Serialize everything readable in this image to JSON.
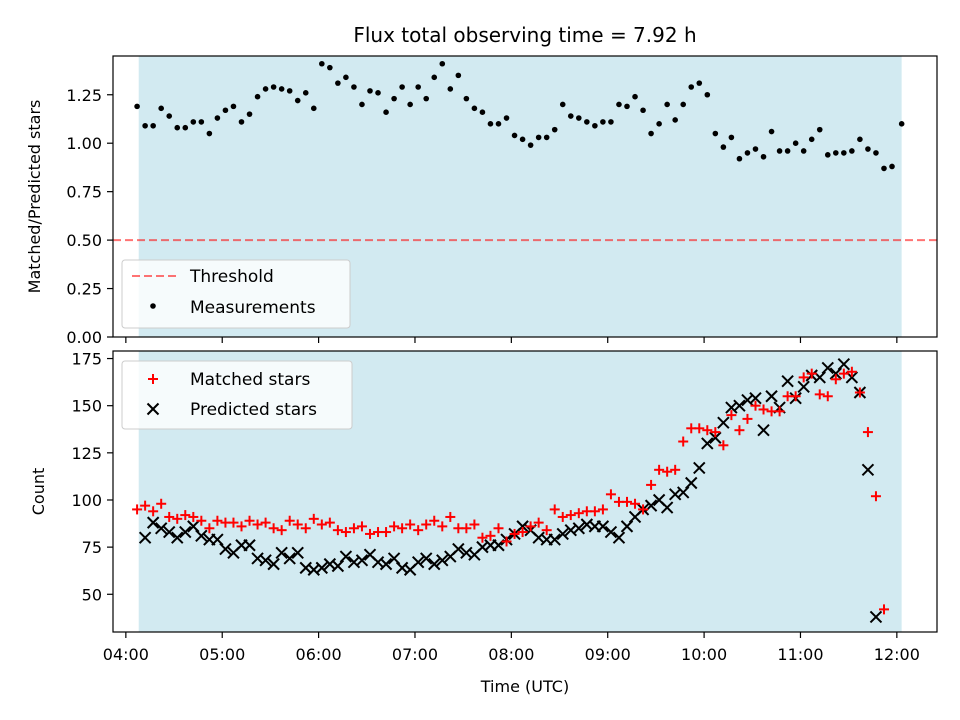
{
  "title": "Flux total observing time = 7.92 h",
  "colors": {
    "observing_band": "#add8e6",
    "threshold": "#ff0000",
    "measurements": "#000000",
    "matched": "#ff0000",
    "predicted": "#000000"
  },
  "chart_data": [
    {
      "type": "scatter",
      "panel": "top",
      "ylabel": "Matched/Predicted stars",
      "ylim": [
        0,
        1.45
      ],
      "yticks": [
        0,
        0.25,
        0.5,
        0.75,
        1.0,
        1.25
      ],
      "ytick_labels": [
        "0.00",
        "0.25",
        "0.50",
        "0.75",
        "1.00",
        "1.25"
      ],
      "xlim": [
        "03:52",
        "12:25"
      ],
      "observing_span": [
        "04:08",
        "12:03"
      ],
      "threshold": {
        "name": "Threshold",
        "value": 0.5,
        "style": "dashed"
      },
      "legend": {
        "location": "lower-left",
        "entries": [
          "Threshold",
          "Measurements"
        ]
      },
      "series": [
        {
          "name": "Measurements",
          "marker": "dot",
          "x": [
            "04:07",
            "04:12",
            "04:17",
            "04:22",
            "04:27",
            "04:32",
            "04:37",
            "04:42",
            "04:47",
            "04:52",
            "04:57",
            "05:02",
            "05:07",
            "05:12",
            "05:17",
            "05:22",
            "05:27",
            "05:32",
            "05:37",
            "05:42",
            "05:47",
            "05:52",
            "05:57",
            "06:02",
            "06:07",
            "06:12",
            "06:17",
            "06:22",
            "06:27",
            "06:32",
            "06:37",
            "06:42",
            "06:47",
            "06:52",
            "06:57",
            "07:02",
            "07:07",
            "07:12",
            "07:17",
            "07:22",
            "07:27",
            "07:32",
            "07:37",
            "07:42",
            "07:47",
            "07:52",
            "07:57",
            "08:02",
            "08:07",
            "08:12",
            "08:17",
            "08:22",
            "08:27",
            "08:32",
            "08:37",
            "08:42",
            "08:47",
            "08:52",
            "08:57",
            "09:02",
            "09:07",
            "09:12",
            "09:17",
            "09:22",
            "09:27",
            "09:32",
            "09:37",
            "09:42",
            "09:47",
            "09:52",
            "09:57",
            "10:02",
            "10:07",
            "10:12",
            "10:17",
            "10:22",
            "10:27",
            "10:32",
            "10:37",
            "10:42",
            "10:47",
            "10:52",
            "10:57",
            "11:02",
            "11:07",
            "11:12",
            "11:17",
            "11:22",
            "11:27",
            "11:32",
            "11:37",
            "11:42",
            "11:47",
            "11:52",
            "11:57",
            "12:03"
          ],
          "y": [
            1.19,
            1.09,
            1.09,
            1.18,
            1.14,
            1.08,
            1.08,
            1.11,
            1.11,
            1.05,
            1.13,
            1.17,
            1.19,
            1.11,
            1.15,
            1.24,
            1.28,
            1.29,
            1.28,
            1.27,
            1.22,
            1.26,
            1.18,
            1.41,
            1.39,
            1.31,
            1.34,
            1.29,
            1.2,
            1.27,
            1.26,
            1.16,
            1.23,
            1.29,
            1.2,
            1.29,
            1.23,
            1.34,
            1.41,
            1.28,
            1.35,
            1.23,
            1.18,
            1.16,
            1.1,
            1.1,
            1.13,
            1.04,
            1.02,
            0.99,
            1.03,
            1.03,
            1.07,
            1.2,
            1.14,
            1.13,
            1.11,
            1.09,
            1.11,
            1.11,
            1.2,
            1.19,
            1.24,
            1.17,
            1.05,
            1.1,
            1.2,
            1.12,
            1.2,
            1.29,
            1.31,
            1.25,
            1.05,
            0.98,
            1.03,
            0.92,
            0.95,
            0.97,
            0.93,
            1.06,
            0.96,
            0.96,
            1.0,
            0.96,
            1.02,
            1.07,
            0.94,
            0.95,
            0.95,
            0.96,
            1.02,
            0.97,
            0.95,
            0.87,
            0.88,
            1.1
          ]
        }
      ]
    },
    {
      "type": "scatter",
      "panel": "bottom",
      "xlabel": "Time (UTC)",
      "ylabel": "Count",
      "ylim": [
        30,
        179
      ],
      "yticks": [
        50,
        75,
        100,
        125,
        150,
        175
      ],
      "ytick_labels": [
        "50",
        "75",
        "100",
        "125",
        "150",
        "175"
      ],
      "xlim": [
        "03:52",
        "12:25"
      ],
      "xticks": [
        "04:00",
        "05:00",
        "06:00",
        "07:00",
        "08:00",
        "09:00",
        "10:00",
        "11:00",
        "12:00"
      ],
      "observing_span": [
        "04:08",
        "12:03"
      ],
      "legend": {
        "location": "upper-left",
        "entries": [
          "Matched stars",
          "Predicted stars"
        ]
      },
      "x": [
        "04:07",
        "04:12",
        "04:17",
        "04:22",
        "04:27",
        "04:32",
        "04:37",
        "04:42",
        "04:47",
        "04:52",
        "04:57",
        "05:02",
        "05:07",
        "05:12",
        "05:17",
        "05:22",
        "05:27",
        "05:32",
        "05:37",
        "05:42",
        "05:47",
        "05:52",
        "05:57",
        "06:02",
        "06:07",
        "06:12",
        "06:17",
        "06:22",
        "06:27",
        "06:32",
        "06:37",
        "06:42",
        "06:47",
        "06:52",
        "06:57",
        "07:02",
        "07:07",
        "07:12",
        "07:17",
        "07:22",
        "07:27",
        "07:32",
        "07:37",
        "07:42",
        "07:47",
        "07:52",
        "07:57",
        "08:02",
        "08:07",
        "08:12",
        "08:17",
        "08:22",
        "08:27",
        "08:32",
        "08:37",
        "08:42",
        "08:47",
        "08:52",
        "08:57",
        "09:02",
        "09:07",
        "09:12",
        "09:17",
        "09:22",
        "09:27",
        "09:32",
        "09:37",
        "09:42",
        "09:47",
        "09:52",
        "09:57",
        "10:02",
        "10:07",
        "10:12",
        "10:17",
        "10:22",
        "10:27",
        "10:32",
        "10:37",
        "10:42",
        "10:47",
        "10:52",
        "10:57",
        "11:02",
        "11:07",
        "11:12",
        "11:17",
        "11:22",
        "11:27",
        "11:32",
        "11:37",
        "11:42",
        "11:47",
        "11:52",
        "11:57",
        "12:03"
      ],
      "series": [
        {
          "name": "Matched stars",
          "marker": "plus",
          "values": [
            95,
            97,
            94,
            98,
            91,
            90,
            92,
            91,
            89,
            85,
            89,
            88,
            88,
            86,
            89,
            87,
            88,
            85,
            84,
            89,
            87,
            85,
            90,
            87,
            88,
            84,
            83,
            85,
            86,
            82,
            83,
            83,
            86,
            85,
            87,
            84,
            87,
            89,
            86,
            91,
            85,
            85,
            87,
            80,
            81,
            85,
            78,
            82,
            83,
            86,
            88,
            84,
            95,
            91,
            92,
            93,
            94,
            94,
            95,
            103,
            99,
            99,
            98,
            95,
            108,
            116,
            115,
            116,
            131,
            138,
            138,
            137,
            136,
            129,
            145,
            137,
            143,
            150,
            148,
            147,
            147,
            155,
            155,
            165,
            167,
            156,
            155,
            164,
            167,
            168,
            157,
            136,
            102,
            42
          ],
          "x_index_offset": 0
        },
        {
          "name": "Predicted stars",
          "marker": "x",
          "values": [
            80,
            88,
            85,
            83,
            80,
            83,
            86,
            81,
            79,
            79,
            74,
            72,
            76,
            76,
            69,
            68,
            66,
            72,
            69,
            72,
            64,
            63,
            64,
            66,
            65,
            70,
            67,
            68,
            71,
            67,
            66,
            69,
            64,
            63,
            67,
            69,
            66,
            68,
            70,
            74,
            72,
            71,
            75,
            76,
            76,
            79,
            82,
            86,
            84,
            80,
            79,
            79,
            82,
            84,
            85,
            87,
            86,
            86,
            83,
            80,
            86,
            91,
            95,
            97,
            100,
            96,
            103,
            104,
            109,
            117,
            130,
            133,
            141,
            149,
            150,
            153,
            154,
            137,
            155,
            149,
            163,
            154,
            160,
            166,
            165,
            170,
            167,
            172,
            165,
            157,
            116,
            38
          ],
          "x_index_offset": 1
        }
      ]
    }
  ]
}
